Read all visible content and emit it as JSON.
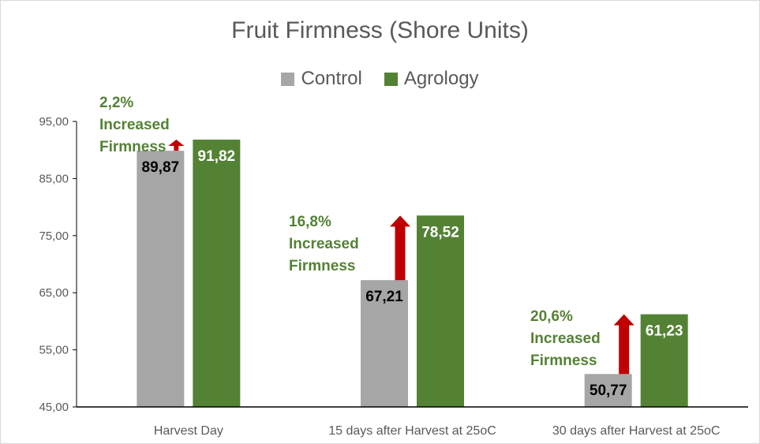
{
  "chart_data": {
    "type": "bar",
    "title": "Fruit Firmness (Shore Units)",
    "xlabel": "",
    "ylabel": "",
    "ylim": [
      45,
      95
    ],
    "yticks": [
      "45,00",
      "55,00",
      "65,00",
      "75,00",
      "85,00",
      "95,00"
    ],
    "categories": [
      "Harvest Day",
      "15 days after Harvest at 25oC",
      "30 days after Harvest at 25oC"
    ],
    "legend": "top",
    "grid": false,
    "series": [
      {
        "name": "Control",
        "color": "#a6a6a6",
        "label_color": "#000000",
        "values": [
          89.87,
          67.21,
          50.77
        ],
        "labels": [
          "89,87",
          "67,21",
          "50,77"
        ]
      },
      {
        "name": "Agrology",
        "color": "#548235",
        "label_color": "#ffffff",
        "values": [
          91.82,
          78.52,
          61.23
        ],
        "labels": [
          "91,82",
          "78,52",
          "61,23"
        ]
      }
    ],
    "annotations": [
      {
        "category": "Harvest Day",
        "percent": "2,2%",
        "line1": "Increased",
        "line2": "Firmness"
      },
      {
        "category": "15 days after Harvest at 25oC",
        "percent": "16,8%",
        "line1": "Increased",
        "line2": "Firmness"
      },
      {
        "category": "30 days after Harvest at 25oC",
        "percent": "20,6%",
        "line1": "Increased",
        "line2": "Firmness"
      }
    ],
    "annotation_color": "#548235",
    "arrow_color": "#c00000"
  }
}
